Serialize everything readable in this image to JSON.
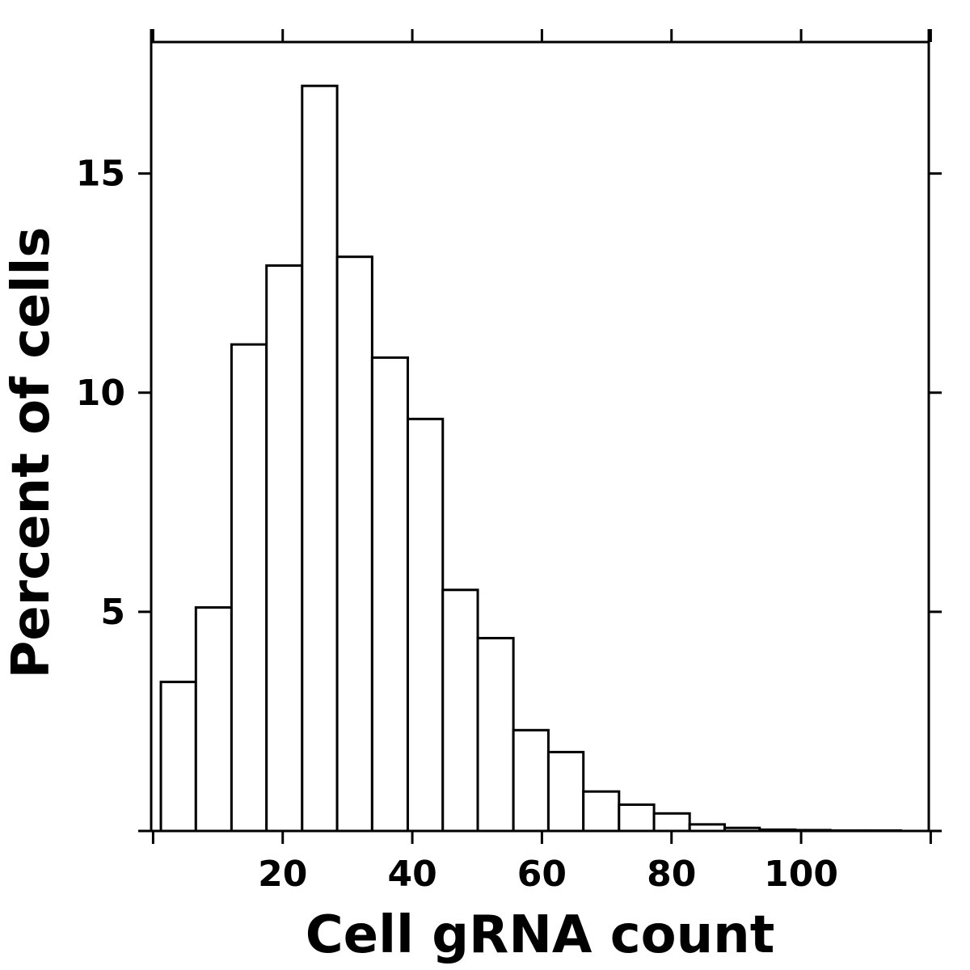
{
  "chart_data": {
    "type": "bar",
    "title": "",
    "xlabel": "Cell gRNA count",
    "ylabel": "Percent of cells",
    "xlim": [
      -0.3,
      119.7
    ],
    "ylim": [
      0,
      18
    ],
    "grid": false,
    "bin_edges": [
      1.2,
      6.6,
      12.1,
      17.5,
      23.0,
      28.4,
      33.8,
      39.3,
      44.7,
      50.1,
      55.6,
      61.0,
      66.4,
      71.9,
      77.3,
      82.8,
      88.2,
      93.6,
      99.1,
      104.5,
      109.9,
      115.4
    ],
    "values": [
      3.4,
      5.1,
      11.1,
      12.9,
      17.0,
      13.1,
      10.8,
      9.4,
      5.5,
      4.4,
      2.3,
      1.8,
      0.9,
      0.6,
      0.4,
      0.15,
      0.07,
      0.03,
      0.02,
      0.01,
      0.01
    ],
    "x_ticks": [
      {
        "value": 20,
        "label": "20"
      },
      {
        "value": 40,
        "label": "40"
      },
      {
        "value": 60,
        "label": "60"
      },
      {
        "value": 80,
        "label": "80"
      },
      {
        "value": 100,
        "label": "100"
      }
    ],
    "x_top_ticks": [
      0,
      20,
      40,
      60,
      80,
      100,
      120
    ],
    "y_ticks": [
      {
        "value": 5,
        "label": "5"
      },
      {
        "value": 10,
        "label": "10"
      },
      {
        "value": 15,
        "label": "15"
      }
    ],
    "y_right_ticks": [
      0,
      5,
      10,
      15
    ]
  }
}
